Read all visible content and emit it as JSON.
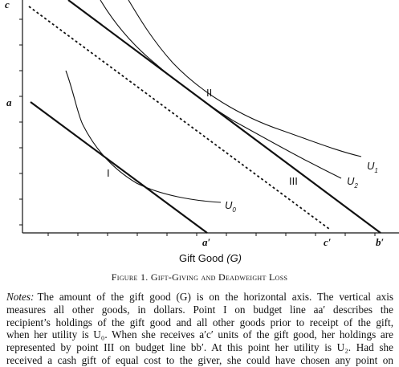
{
  "figure": {
    "y_axis_labels": [
      "c",
      "a"
    ],
    "x_axis_labels": [
      "a′",
      "c′",
      "b′"
    ],
    "x_axis_title": {
      "text": "Gift Good",
      "symbol": "(G)"
    },
    "points": [
      "I",
      "II",
      "III"
    ],
    "curves": [
      {
        "symbol": "U",
        "subscript": "0"
      },
      {
        "symbol": "U",
        "subscript": "1"
      },
      {
        "symbol": "U",
        "subscript": "2"
      }
    ]
  },
  "caption": "Figure 1. Gift-Giving and Deadweight Loss",
  "notes": {
    "label": "Notes:",
    "lines": [
      "The amount of the gift good (G) is on the horizontal axis. The vertical axis",
      "measures all other goods, in dollars. Point I on budget line aa′ describes the",
      "recipient’s holdings of the gift good and all other goods prior to receipt of the gift,",
      "when her utility is U₀. When she receives a′c′ units of the gift good, her holdings are",
      "represented by point III on budget line bb′. At this point her utility is U₂. Had she",
      "received a cash gift of equal cost to the giver, she could have chosen any point on"
    ]
  }
}
